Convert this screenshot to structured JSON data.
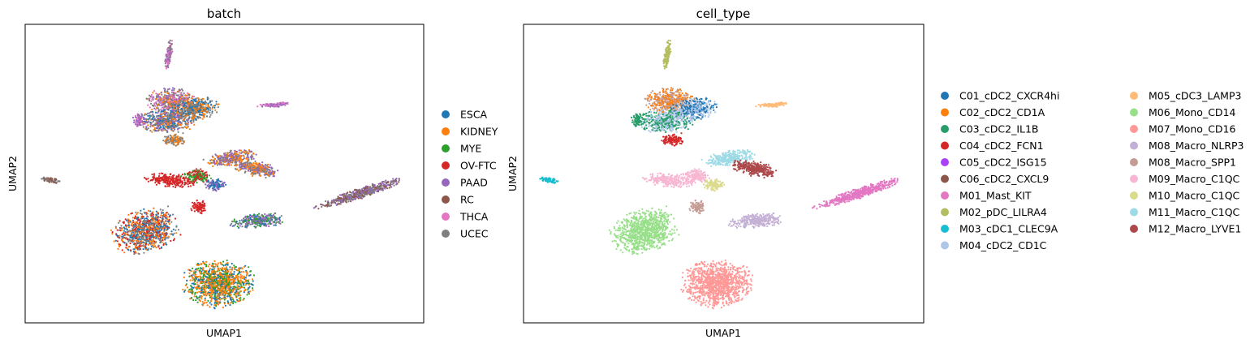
{
  "chart_data": [
    {
      "type": "scatter",
      "title": "batch",
      "xlabel": "UMAP1",
      "ylabel": "UMAP2",
      "legend_position": "right",
      "categories": [
        {
          "name": "ESCA",
          "color": "#1f77b4"
        },
        {
          "name": "KIDNEY",
          "color": "#ff7f0e"
        },
        {
          "name": "MYE",
          "color": "#2ca02c"
        },
        {
          "name": "OV-FTC",
          "color": "#d62728"
        },
        {
          "name": "PAAD",
          "color": "#9467bd"
        },
        {
          "name": "RC",
          "color": "#8c564b"
        },
        {
          "name": "THCA",
          "color": "#e377c2"
        },
        {
          "name": "UCEC",
          "color": "#7f7f7f"
        }
      ]
    },
    {
      "type": "scatter",
      "title": "cell_type",
      "xlabel": "UMAP1",
      "ylabel": "UMAP2",
      "legend_position": "right",
      "categories": [
        {
          "name": "C01_cDC2_CXCR4hi",
          "color": "#1f77b4"
        },
        {
          "name": "C02_cDC2_CD1A",
          "color": "#ff7f0e"
        },
        {
          "name": "C03_cDC2_IL1B",
          "color": "#279e68"
        },
        {
          "name": "C04_cDC2_FCN1",
          "color": "#d62728"
        },
        {
          "name": "C05_cDC2_ISG15",
          "color": "#aa40fc"
        },
        {
          "name": "C06_cDC2_CXCL9",
          "color": "#8c564b"
        },
        {
          "name": "M01_Mast_KIT",
          "color": "#e377c2"
        },
        {
          "name": "M02_pDC_LILRA4",
          "color": "#b5bd61"
        },
        {
          "name": "M03_cDC1_CLEC9A",
          "color": "#17becf"
        },
        {
          "name": "M04_cDC2_CD1C",
          "color": "#aec7e8"
        },
        {
          "name": "M05_cDC3_LAMP3",
          "color": "#ffbb78"
        },
        {
          "name": "M06_Mono_CD14",
          "color": "#98df8a"
        },
        {
          "name": "M07_Mono_CD16",
          "color": "#ff9896"
        },
        {
          "name": "M08_Macro_NLRP3",
          "color": "#c5b0d5"
        },
        {
          "name": "M08_Macro_SPP1",
          "color": "#c49c94"
        },
        {
          "name": "M09_Macro_C1QC",
          "color": "#f7b6d2"
        },
        {
          "name": "M10_Macro_C1QC",
          "color": "#dbdb8d"
        },
        {
          "name": "M11_Macro_C1QC",
          "color": "#9edae5"
        },
        {
          "name": "M12_Macro_LYVE1",
          "color": "#ad494a"
        }
      ]
    }
  ]
}
